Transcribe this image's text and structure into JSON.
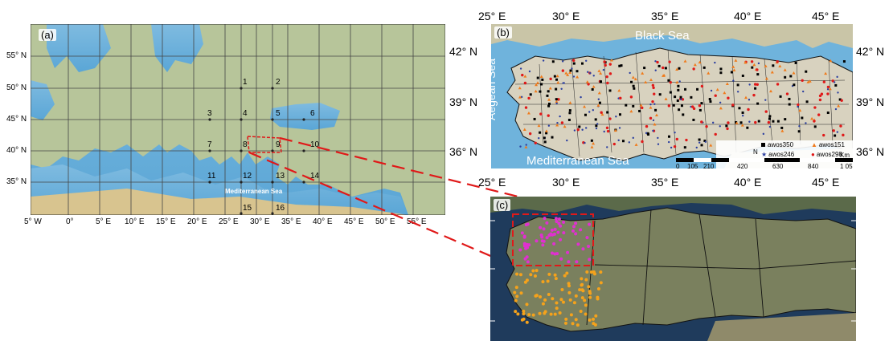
{
  "panel_a": {
    "tag": "(a)",
    "lat_labels": [
      "55° N",
      "50° N",
      "45° N",
      "40° N",
      "35° N"
    ],
    "lon_labels": [
      "5° W",
      "0°",
      "5° E",
      "10° E",
      "15° E",
      "20° E",
      "25° E",
      "30° E",
      "35° E",
      "40° E",
      "45° E",
      "50° E",
      "55° E"
    ],
    "grid_points": [
      "1",
      "2",
      "3",
      "4",
      "5",
      "6",
      "7",
      "8",
      "9",
      "10",
      "11",
      "12",
      "13",
      "14",
      "15",
      "16"
    ],
    "sea_label": "Mediterranean Sea"
  },
  "panel_b": {
    "tag": "(b)",
    "top_lon_labels": [
      "25° E",
      "30° E",
      "35° E",
      "40° E",
      "45° E"
    ],
    "bottom_lon_labels": [
      "25° E",
      "30° E",
      "35° E",
      "40° E",
      "45° E"
    ],
    "left_lat_labels": [
      "42° N",
      "39° N",
      "36° N"
    ],
    "right_lat_labels": [
      "42° N",
      "39° N",
      "36° N"
    ],
    "black_sea": "Black Sea",
    "aegean_sea": "Aegean Sea",
    "med_sea": "Mediterranean Sea",
    "legend": [
      "awos350",
      "awos151",
      "awos246",
      "awos298"
    ],
    "north": "N",
    "scale_ticks": [
      "0",
      "105",
      "210",
      "420",
      "630",
      "840",
      "1 05"
    ],
    "scale_unit": "Km"
  },
  "panel_c": {
    "tag": "(c)"
  },
  "colors": {
    "sea": "#6fb3dc",
    "land": "#b9c49a",
    "turkey_land": "#d8d2bf",
    "dashed_red": "#e01919",
    "magenta": "#e030d0",
    "orange_pts": "#f5a21b",
    "satellite_sea": "#1f3b5c",
    "satellite_land": "#6e7a5a"
  }
}
